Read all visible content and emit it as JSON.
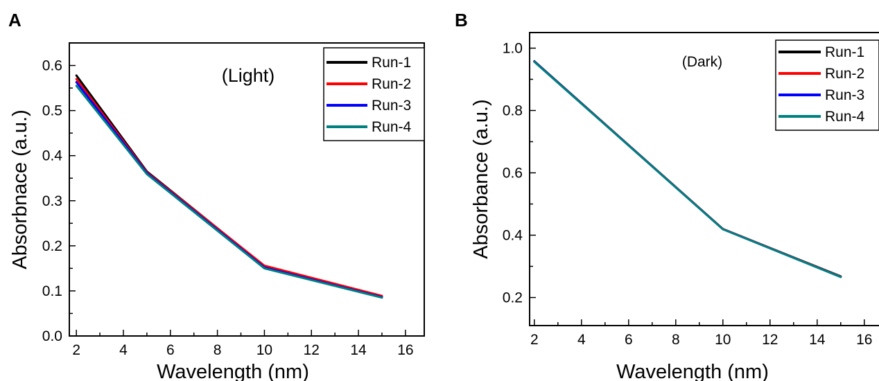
{
  "chart_data": [
    {
      "panel": "A",
      "type": "line",
      "annotation": "(Light)",
      "xlabel": "Wavelength (nm)",
      "ylabel": "Absorbnace (a.u.)",
      "xlim": [
        1.7,
        16.8
      ],
      "ylim": [
        0.0,
        0.65
      ],
      "xticks": [
        2,
        4,
        6,
        8,
        10,
        12,
        14,
        16
      ],
      "yticks": [
        0.0,
        0.1,
        0.2,
        0.3,
        0.4,
        0.5,
        0.6
      ],
      "ytick_labels": [
        "0.0",
        "0.1",
        "0.2",
        "0.3",
        "0.4",
        "0.5",
        "0.6"
      ],
      "legend_position": "top-right",
      "x": [
        2,
        5,
        10,
        15
      ],
      "series": [
        {
          "name": "Run-1",
          "color": "#000000",
          "values": [
            0.578,
            0.365,
            0.155,
            0.087
          ]
        },
        {
          "name": "Run-2",
          "color": "#ff0000",
          "values": [
            0.57,
            0.363,
            0.156,
            0.089
          ]
        },
        {
          "name": "Run-3",
          "color": "#0000ff",
          "values": [
            0.563,
            0.361,
            0.152,
            0.086
          ]
        },
        {
          "name": "Run-4",
          "color": "#008080",
          "values": [
            0.555,
            0.359,
            0.15,
            0.085
          ]
        }
      ]
    },
    {
      "panel": "B",
      "type": "line",
      "annotation": "(Dark)",
      "xlabel": "Wavelength (nm)",
      "ylabel": "Absorbance (a.u.)",
      "xlim": [
        1.8,
        16.8
      ],
      "ylim": [
        0.11,
        1.05
      ],
      "xticks": [
        2,
        4,
        6,
        8,
        10,
        12,
        14,
        16
      ],
      "yticks": [
        0.2,
        0.4,
        0.6,
        0.8,
        1.0
      ],
      "ytick_labels": [
        "0.2",
        "0.4",
        "0.6",
        "0.8",
        "1.0"
      ],
      "legend_position": "top-right",
      "x": [
        2,
        10,
        15
      ],
      "series": [
        {
          "name": "Run-1",
          "color": "#000000",
          "values": [
            0.958,
            0.42,
            0.268
          ]
        },
        {
          "name": "Run-2",
          "color": "#ff0000",
          "values": [
            0.957,
            0.42,
            0.267
          ]
        },
        {
          "name": "Run-3",
          "color": "#0000ff",
          "values": [
            0.957,
            0.419,
            0.266
          ]
        },
        {
          "name": "Run-4",
          "color": "#008080",
          "values": [
            0.956,
            0.419,
            0.266
          ]
        }
      ]
    }
  ]
}
